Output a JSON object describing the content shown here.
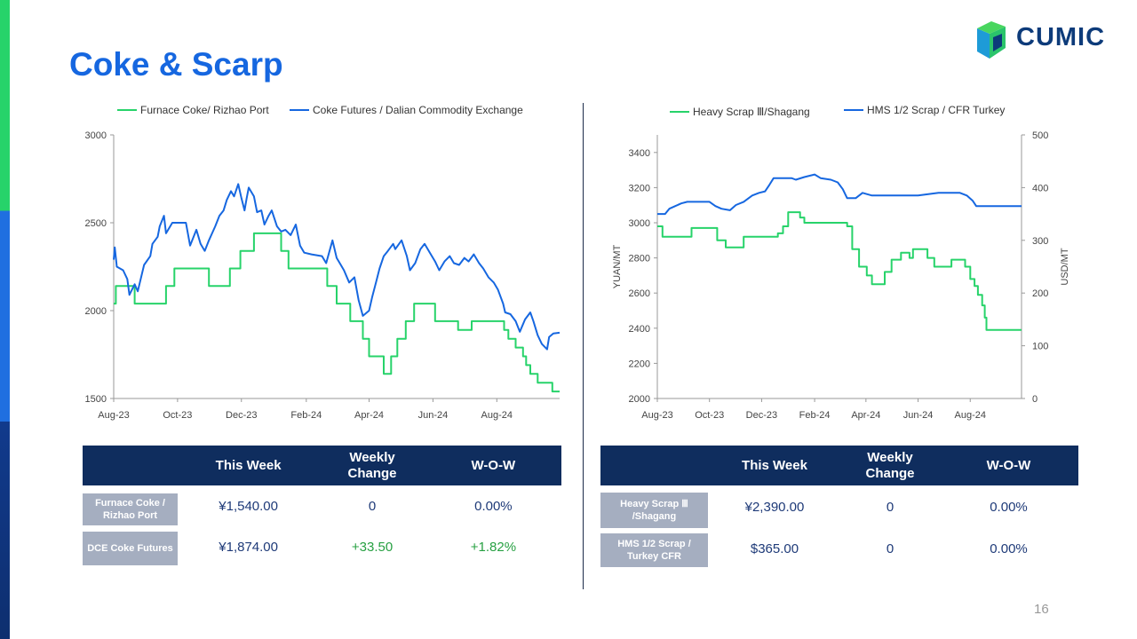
{
  "title": "Coke & Scarp",
  "logo": {
    "text": "CUMIC"
  },
  "page_number": "16",
  "colors": {
    "green": "#27d36a",
    "blue": "#1667e0",
    "navy": "#0f2d5e",
    "label_gray": "#a5aec0"
  },
  "chart_data": [
    {
      "type": "line",
      "title": "",
      "xlabel": "",
      "ylabel": "",
      "x_ticks": [
        "Aug-23",
        "Oct-23",
        "Dec-23",
        "Feb-24",
        "Apr-24",
        "Jun-24",
        "Aug-24"
      ],
      "y_ticks": [
        1500,
        2000,
        2500,
        3000
      ],
      "ylim": [
        1500,
        3000
      ],
      "legend_position": "top",
      "series": [
        {
          "name": "Furnace Coke/ Rizhao Port",
          "color": "#27d36a",
          "step": true,
          "points": [
            [
              "2023-08-01",
              2040
            ],
            [
              "2023-08-03",
              2140
            ],
            [
              "2023-08-21",
              2040
            ],
            [
              "2023-09-20",
              2140
            ],
            [
              "2023-09-28",
              2240
            ],
            [
              "2023-10-31",
              2140
            ],
            [
              "2023-11-20",
              2240
            ],
            [
              "2023-11-30",
              2340
            ],
            [
              "2023-12-13",
              2440
            ],
            [
              "2024-01-08",
              2340
            ],
            [
              "2024-01-15",
              2240
            ],
            [
              "2024-02-21",
              2140
            ],
            [
              "2024-03-01",
              2040
            ],
            [
              "2024-03-14",
              1940
            ],
            [
              "2024-03-26",
              1840
            ],
            [
              "2024-04-01",
              1740
            ],
            [
              "2024-04-15",
              1640
            ],
            [
              "2024-04-22",
              1740
            ],
            [
              "2024-04-28",
              1840
            ],
            [
              "2024-05-06",
              1940
            ],
            [
              "2024-05-14",
              2040
            ],
            [
              "2024-06-03",
              1940
            ],
            [
              "2024-06-25",
              1890
            ],
            [
              "2024-07-08",
              1940
            ],
            [
              "2024-08-08",
              1890
            ],
            [
              "2024-08-12",
              1840
            ],
            [
              "2024-08-19",
              1790
            ],
            [
              "2024-08-26",
              1740
            ],
            [
              "2024-08-29",
              1690
            ],
            [
              "2024-09-02",
              1640
            ],
            [
              "2024-09-09",
              1590
            ],
            [
              "2024-09-23",
              1540
            ],
            [
              "2024-09-30",
              1540
            ]
          ]
        },
        {
          "name": "Coke Futures / Dalian Commodity Exchange",
          "color": "#1667e0",
          "step": false,
          "points": [
            [
              "2023-08-01",
              2290
            ],
            [
              "2023-08-02",
              2360
            ],
            [
              "2023-08-04",
              2250
            ],
            [
              "2023-08-10",
              2230
            ],
            [
              "2023-08-14",
              2180
            ],
            [
              "2023-08-16",
              2090
            ],
            [
              "2023-08-21",
              2150
            ],
            [
              "2023-08-24",
              2110
            ],
            [
              "2023-08-30",
              2260
            ],
            [
              "2023-09-05",
              2310
            ],
            [
              "2023-09-07",
              2380
            ],
            [
              "2023-09-12",
              2420
            ],
            [
              "2023-09-14",
              2480
            ],
            [
              "2023-09-18",
              2540
            ],
            [
              "2023-09-20",
              2440
            ],
            [
              "2023-09-26",
              2500
            ],
            [
              "2023-10-09",
              2500
            ],
            [
              "2023-10-13",
              2370
            ],
            [
              "2023-10-19",
              2460
            ],
            [
              "2023-10-23",
              2380
            ],
            [
              "2023-10-27",
              2340
            ],
            [
              "2023-10-31",
              2400
            ],
            [
              "2023-11-06",
              2480
            ],
            [
              "2023-11-10",
              2540
            ],
            [
              "2023-11-14",
              2570
            ],
            [
              "2023-11-17",
              2630
            ],
            [
              "2023-11-21",
              2680
            ],
            [
              "2023-11-24",
              2650
            ],
            [
              "2023-11-28",
              2720
            ],
            [
              "2023-12-01",
              2640
            ],
            [
              "2023-12-04",
              2570
            ],
            [
              "2023-12-06",
              2640
            ],
            [
              "2023-12-08",
              2700
            ],
            [
              "2023-12-13",
              2650
            ],
            [
              "2023-12-16",
              2560
            ],
            [
              "2023-12-20",
              2570
            ],
            [
              "2023-12-23",
              2490
            ],
            [
              "2023-12-27",
              2540
            ],
            [
              "2023-12-30",
              2570
            ],
            [
              "2024-01-04",
              2480
            ],
            [
              "2024-01-08",
              2450
            ],
            [
              "2024-01-12",
              2460
            ],
            [
              "2024-01-17",
              2430
            ],
            [
              "2024-01-22",
              2490
            ],
            [
              "2024-01-26",
              2370
            ],
            [
              "2024-01-30",
              2330
            ],
            [
              "2024-02-06",
              2320
            ],
            [
              "2024-02-16",
              2310
            ],
            [
              "2024-02-20",
              2270
            ],
            [
              "2024-02-26",
              2400
            ],
            [
              "2024-03-01",
              2300
            ],
            [
              "2024-03-04",
              2270
            ],
            [
              "2024-03-08",
              2230
            ],
            [
              "2024-03-13",
              2160
            ],
            [
              "2024-03-18",
              2190
            ],
            [
              "2024-03-22",
              2060
            ],
            [
              "2024-03-26",
              1970
            ],
            [
              "2024-04-01",
              2000
            ],
            [
              "2024-04-04",
              2080
            ],
            [
              "2024-04-08",
              2170
            ],
            [
              "2024-04-11",
              2240
            ],
            [
              "2024-04-15",
              2310
            ],
            [
              "2024-04-19",
              2340
            ],
            [
              "2024-04-24",
              2380
            ],
            [
              "2024-04-26",
              2350
            ],
            [
              "2024-05-02",
              2400
            ],
            [
              "2024-05-07",
              2310
            ],
            [
              "2024-05-10",
              2230
            ],
            [
              "2024-05-15",
              2270
            ],
            [
              "2024-05-20",
              2350
            ],
            [
              "2024-05-24",
              2380
            ],
            [
              "2024-05-29",
              2330
            ],
            [
              "2024-06-03",
              2280
            ],
            [
              "2024-06-07",
              2230
            ],
            [
              "2024-06-12",
              2280
            ],
            [
              "2024-06-17",
              2310
            ],
            [
              "2024-06-21",
              2270
            ],
            [
              "2024-06-26",
              2260
            ],
            [
              "2024-07-01",
              2300
            ],
            [
              "2024-07-05",
              2280
            ],
            [
              "2024-07-10",
              2320
            ],
            [
              "2024-07-15",
              2270
            ],
            [
              "2024-07-19",
              2240
            ],
            [
              "2024-07-24",
              2190
            ],
            [
              "2024-07-29",
              2160
            ],
            [
              "2024-08-02",
              2120
            ],
            [
              "2024-08-07",
              2040
            ],
            [
              "2024-08-09",
              1990
            ],
            [
              "2024-08-14",
              1980
            ],
            [
              "2024-08-19",
              1940
            ],
            [
              "2024-08-23",
              1880
            ],
            [
              "2024-08-28",
              1950
            ],
            [
              "2024-09-02",
              1990
            ],
            [
              "2024-09-05",
              1940
            ],
            [
              "2024-09-09",
              1860
            ],
            [
              "2024-09-13",
              1810
            ],
            [
              "2024-09-18",
              1780
            ],
            [
              "2024-09-20",
              1850
            ],
            [
              "2024-09-24",
              1870
            ],
            [
              "2024-09-30",
              1874
            ]
          ]
        }
      ]
    },
    {
      "type": "line",
      "title": "",
      "xlabel": "",
      "ylabel": "YUAN/MT",
      "y2label": "USD/MT",
      "x_ticks": [
        "Aug-23",
        "Oct-23",
        "Dec-23",
        "Feb-24",
        "Apr-24",
        "Jun-24",
        "Aug-24"
      ],
      "y_ticks": [
        2000,
        2200,
        2400,
        2600,
        2800,
        3000,
        3200,
        3400
      ],
      "y2_ticks": [
        0,
        100,
        200,
        300,
        400,
        500
      ],
      "ylim": [
        2000,
        3500
      ],
      "y2lim": [
        0,
        500
      ],
      "legend_position": "top",
      "series": [
        {
          "name": "Heavy Scrap Ⅲ/Shagang",
          "color": "#27d36a",
          "axis": "left",
          "step": true,
          "points": [
            [
              "2023-08-01",
              2980
            ],
            [
              "2023-08-07",
              2920
            ],
            [
              "2023-09-10",
              2970
            ],
            [
              "2023-10-10",
              2900
            ],
            [
              "2023-10-20",
              2860
            ],
            [
              "2023-11-10",
              2920
            ],
            [
              "2023-12-20",
              2940
            ],
            [
              "2023-12-26",
              2980
            ],
            [
              "2024-01-01",
              3060
            ],
            [
              "2024-01-15",
              3030
            ],
            [
              "2024-01-20",
              3000
            ],
            [
              "2024-03-10",
              2980
            ],
            [
              "2024-03-16",
              2850
            ],
            [
              "2024-03-24",
              2750
            ],
            [
              "2024-04-02",
              2700
            ],
            [
              "2024-04-08",
              2650
            ],
            [
              "2024-04-23",
              2720
            ],
            [
              "2024-05-01",
              2790
            ],
            [
              "2024-05-12",
              2830
            ],
            [
              "2024-05-22",
              2800
            ],
            [
              "2024-05-26",
              2850
            ],
            [
              "2024-06-12",
              2800
            ],
            [
              "2024-06-20",
              2750
            ],
            [
              "2024-07-10",
              2790
            ],
            [
              "2024-07-26",
              2750
            ],
            [
              "2024-08-01",
              2680
            ],
            [
              "2024-08-06",
              2640
            ],
            [
              "2024-08-10",
              2590
            ],
            [
              "2024-08-15",
              2530
            ],
            [
              "2024-08-18",
              2460
            ],
            [
              "2024-08-20",
              2390
            ],
            [
              "2024-09-30",
              2390
            ]
          ]
        },
        {
          "name": "HMS 1/2 Scrap / CFR Turkey",
          "color": "#1667e0",
          "axis": "right",
          "step": false,
          "points": [
            [
              "2023-08-01",
              350
            ],
            [
              "2023-08-10",
              350
            ],
            [
              "2023-08-15",
              360
            ],
            [
              "2023-08-22",
              365
            ],
            [
              "2023-08-29",
              370
            ],
            [
              "2023-09-05",
              373
            ],
            [
              "2023-10-01",
              373
            ],
            [
              "2023-10-08",
              365
            ],
            [
              "2023-10-15",
              360
            ],
            [
              "2023-10-25",
              357
            ],
            [
              "2023-11-01",
              367
            ],
            [
              "2023-11-10",
              373
            ],
            [
              "2023-11-20",
              385
            ],
            [
              "2023-11-28",
              390
            ],
            [
              "2023-12-05",
              393
            ],
            [
              "2023-12-10",
              405
            ],
            [
              "2023-12-15",
              418
            ],
            [
              "2024-01-05",
              418
            ],
            [
              "2024-01-10",
              415
            ],
            [
              "2024-01-20",
              420
            ],
            [
              "2024-02-01",
              425
            ],
            [
              "2024-02-08",
              418
            ],
            [
              "2024-02-20",
              415
            ],
            [
              "2024-02-28",
              410
            ],
            [
              "2024-03-05",
              397
            ],
            [
              "2024-03-10",
              380
            ],
            [
              "2024-03-20",
              380
            ],
            [
              "2024-03-28",
              390
            ],
            [
              "2024-04-08",
              385
            ],
            [
              "2024-05-01",
              385
            ],
            [
              "2024-06-01",
              385
            ],
            [
              "2024-06-25",
              390
            ],
            [
              "2024-07-20",
              390
            ],
            [
              "2024-07-28",
              385
            ],
            [
              "2024-08-04",
              375
            ],
            [
              "2024-08-08",
              365
            ],
            [
              "2024-08-14",
              365
            ],
            [
              "2024-08-25",
              365
            ],
            [
              "2024-09-30",
              365
            ]
          ]
        }
      ]
    }
  ],
  "tables": [
    {
      "headers": [
        "",
        "This Week",
        "Weekly\nChange",
        "W-O-W"
      ],
      "rows": [
        {
          "label": "Furnace Coke / Rizhao Port",
          "this_week": "¥1,540.00",
          "weekly_change": "0",
          "wow": "0.00%"
        },
        {
          "label": "DCE Coke Futures",
          "this_week": "¥1,874.00",
          "weekly_change": "+33.50",
          "wow": "+1.82%"
        }
      ]
    },
    {
      "headers": [
        "",
        "This Week",
        "Weekly\nChange",
        "W-O-W"
      ],
      "rows": [
        {
          "label": "Heavy Scrap Ⅲ /Shagang",
          "this_week": "¥2,390.00",
          "weekly_change": "0",
          "wow": "0.00%"
        },
        {
          "label": "HMS 1/2 Scrap / Turkey CFR",
          "this_week": "$365.00",
          "weekly_change": "0",
          "wow": "0.00%"
        }
      ]
    }
  ]
}
